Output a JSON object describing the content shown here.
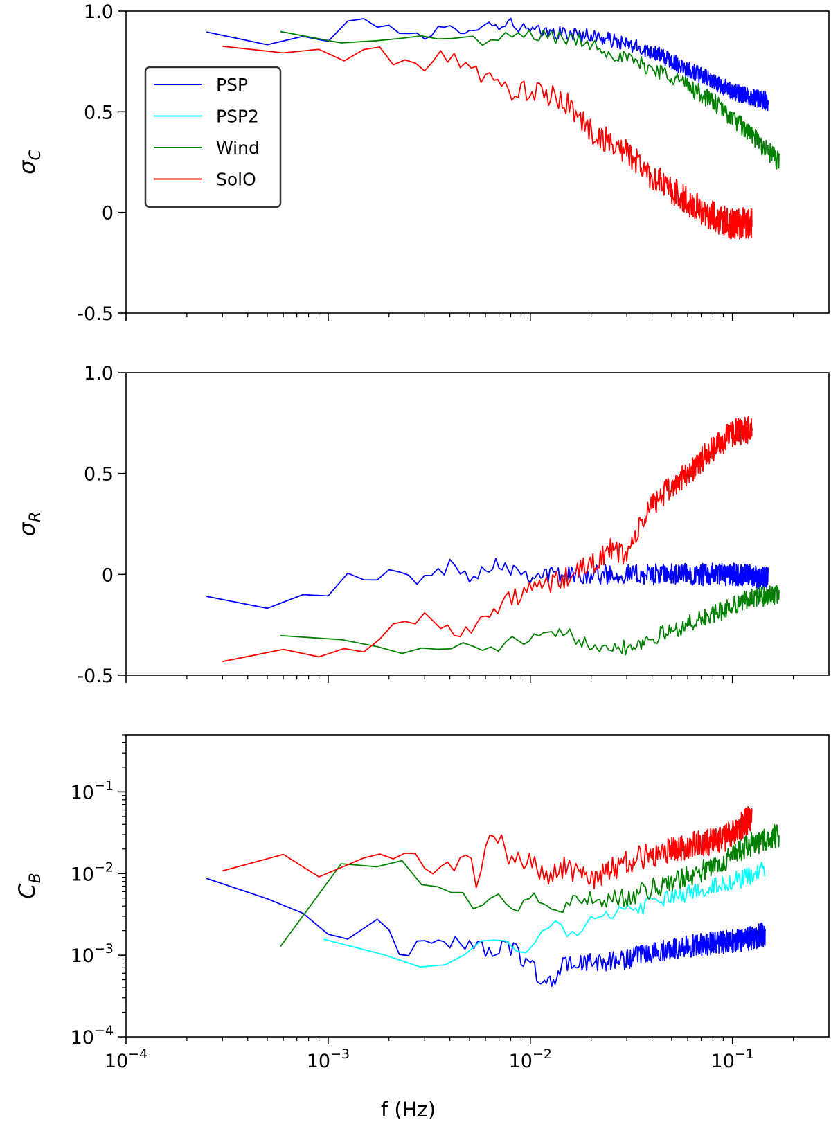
{
  "chart_data": [
    {
      "type": "line",
      "panel": "top",
      "ylabel": "σ_C",
      "xscale": "log",
      "xlim": [
        0.0001,
        0.3
      ],
      "ylim": [
        -0.5,
        1.0
      ],
      "yticks": [
        -0.5,
        0,
        0.5,
        1.0
      ],
      "ytick_labels": [
        "-0.5",
        "0",
        "0.5",
        "1.0"
      ],
      "legend": {
        "position": "upper-left",
        "entries": [
          "PSP",
          "PSP2",
          "Wind",
          "SolO"
        ]
      },
      "series": [
        {
          "name": "PSP",
          "color": "#0000ff",
          "freq_range": [
            0.00025,
            0.15
          ],
          "noise": 0.045,
          "anchors": [
            [
              0.00025,
              0.89
            ],
            [
              0.0005,
              0.84
            ],
            [
              0.001,
              0.87
            ],
            [
              0.00125,
              0.95
            ],
            [
              0.002,
              0.92
            ],
            [
              0.0028,
              0.9
            ],
            [
              0.003,
              0.84
            ],
            [
              0.0035,
              0.9
            ],
            [
              0.005,
              0.92
            ],
            [
              0.008,
              0.94
            ],
            [
              0.01,
              0.9
            ],
            [
              0.02,
              0.88
            ],
            [
              0.04,
              0.8
            ],
            [
              0.07,
              0.68
            ],
            [
              0.1,
              0.6
            ],
            [
              0.15,
              0.55
            ]
          ]
        },
        {
          "name": "PSP2",
          "color": "#00ffff",
          "legend_only": true
        },
        {
          "name": "Wind",
          "color": "#008000",
          "freq_range": [
            0.00058,
            0.17
          ],
          "noise": 0.05,
          "anchors": [
            [
              0.00058,
              0.89
            ],
            [
              0.001,
              0.87
            ],
            [
              0.0018,
              0.85
            ],
            [
              0.0025,
              0.85
            ],
            [
              0.004,
              0.88
            ],
            [
              0.0055,
              0.86
            ],
            [
              0.006,
              0.82
            ],
            [
              0.008,
              0.88
            ],
            [
              0.012,
              0.88
            ],
            [
              0.02,
              0.84
            ],
            [
              0.03,
              0.76
            ],
            [
              0.05,
              0.68
            ],
            [
              0.08,
              0.55
            ],
            [
              0.12,
              0.4
            ],
            [
              0.17,
              0.25
            ]
          ]
        },
        {
          "name": "SolO",
          "color": "#ff0000",
          "freq_range": [
            0.0003,
            0.125
          ],
          "noise": 0.08,
          "anchors": [
            [
              0.0003,
              0.81
            ],
            [
              0.0006,
              0.8
            ],
            [
              0.0009,
              0.78
            ],
            [
              0.0012,
              0.78
            ],
            [
              0.0015,
              0.81
            ],
            [
              0.002,
              0.76
            ],
            [
              0.0025,
              0.77
            ],
            [
              0.003,
              0.7
            ],
            [
              0.004,
              0.8
            ],
            [
              0.005,
              0.72
            ],
            [
              0.007,
              0.62
            ],
            [
              0.01,
              0.6
            ],
            [
              0.015,
              0.55
            ],
            [
              0.02,
              0.4
            ],
            [
              0.03,
              0.3
            ],
            [
              0.04,
              0.18
            ],
            [
              0.06,
              0.05
            ],
            [
              0.08,
              -0.02
            ],
            [
              0.1,
              -0.06
            ],
            [
              0.125,
              -0.05
            ]
          ]
        }
      ]
    },
    {
      "type": "line",
      "panel": "middle",
      "ylabel": "σ_R",
      "xscale": "log",
      "xlim": [
        0.0001,
        0.3
      ],
      "ylim": [
        -0.5,
        1.0
      ],
      "yticks": [
        -0.5,
        0,
        0.5,
        1.0
      ],
      "ytick_labels": [
        "-0.5",
        "0",
        "0.5",
        "1.0"
      ],
      "series": [
        {
          "name": "PSP",
          "color": "#0000ff",
          "freq_range": [
            0.00025,
            0.15
          ],
          "noise": 0.06,
          "anchors": [
            [
              0.00025,
              -0.08
            ],
            [
              0.0005,
              -0.14
            ],
            [
              0.001,
              -0.08
            ],
            [
              0.0012,
              -0.02
            ],
            [
              0.0015,
              -0.04
            ],
            [
              0.002,
              0.0
            ],
            [
              0.003,
              -0.02
            ],
            [
              0.004,
              0.04
            ],
            [
              0.005,
              0.0
            ],
            [
              0.007,
              0.06
            ],
            [
              0.01,
              0.0
            ],
            [
              0.02,
              0.0
            ],
            [
              0.05,
              0.0
            ],
            [
              0.1,
              0.0
            ],
            [
              0.15,
              -0.02
            ]
          ]
        },
        {
          "name": "Wind",
          "color": "#008000",
          "freq_range": [
            0.00058,
            0.17
          ],
          "noise": 0.05,
          "anchors": [
            [
              0.00058,
              -0.28
            ],
            [
              0.0012,
              -0.32
            ],
            [
              0.002,
              -0.4
            ],
            [
              0.003,
              -0.37
            ],
            [
              0.005,
              -0.35
            ],
            [
              0.006,
              -0.4
            ],
            [
              0.007,
              -0.35
            ],
            [
              0.01,
              -0.32
            ],
            [
              0.015,
              -0.3
            ],
            [
              0.02,
              -0.34
            ],
            [
              0.03,
              -0.36
            ],
            [
              0.05,
              -0.28
            ],
            [
              0.08,
              -0.2
            ],
            [
              0.12,
              -0.12
            ],
            [
              0.17,
              -0.1
            ]
          ]
        },
        {
          "name": "SolO",
          "color": "#ff0000",
          "freq_range": [
            0.0003,
            0.125
          ],
          "noise": 0.07,
          "anchors": [
            [
              0.0003,
              -0.4
            ],
            [
              0.0006,
              -0.39
            ],
            [
              0.0013,
              -0.39
            ],
            [
              0.0016,
              -0.36
            ],
            [
              0.002,
              -0.22
            ],
            [
              0.0025,
              -0.25
            ],
            [
              0.003,
              -0.22
            ],
            [
              0.004,
              -0.28
            ],
            [
              0.005,
              -0.25
            ],
            [
              0.006,
              -0.22
            ],
            [
              0.008,
              -0.12
            ],
            [
              0.01,
              -0.08
            ],
            [
              0.015,
              -0.02
            ],
            [
              0.02,
              0.05
            ],
            [
              0.025,
              0.12
            ],
            [
              0.03,
              0.1
            ],
            [
              0.04,
              0.35
            ],
            [
              0.06,
              0.5
            ],
            [
              0.08,
              0.62
            ],
            [
              0.1,
              0.7
            ],
            [
              0.125,
              0.72
            ]
          ]
        }
      ]
    },
    {
      "type": "line",
      "panel": "bottom",
      "ylabel": "C_B",
      "xlabel": "f (Hz)",
      "xscale": "log",
      "yscale": "log",
      "xlim": [
        0.0001,
        0.3
      ],
      "ylim": [
        0.0001,
        0.5
      ],
      "yticks": [
        0.0001,
        0.001,
        0.01,
        0.1
      ],
      "ytick_labels": [
        {
          "base": "10",
          "exp": "−4"
        },
        {
          "base": "10",
          "exp": "−3"
        },
        {
          "base": "10",
          "exp": "−2"
        },
        {
          "base": "10",
          "exp": "−1"
        }
      ],
      "xticks": [
        0.0001,
        0.001,
        0.01,
        0.1
      ],
      "xtick_labels": [
        {
          "base": "10",
          "exp": "−4"
        },
        {
          "base": "10",
          "exp": "−3"
        },
        {
          "base": "10",
          "exp": "−2"
        },
        {
          "base": "10",
          "exp": "−1"
        }
      ],
      "series": [
        {
          "name": "PSP",
          "color": "#0000ff",
          "freq_range": [
            0.00025,
            0.145
          ],
          "noise": 0.15,
          "anchors": [
            [
              0.00025,
              0.009
            ],
            [
              0.0005,
              0.0045
            ],
            [
              0.0007,
              0.004
            ],
            [
              0.0012,
              0.0015
            ],
            [
              0.0018,
              0.003
            ],
            [
              0.0022,
              0.001
            ],
            [
              0.003,
              0.0015
            ],
            [
              0.004,
              0.0015
            ],
            [
              0.006,
              0.0012
            ],
            [
              0.008,
              0.0012
            ],
            [
              0.01,
              0.0008
            ],
            [
              0.012,
              0.0004
            ],
            [
              0.015,
              0.0008
            ],
            [
              0.02,
              0.0008
            ],
            [
              0.03,
              0.0009
            ],
            [
              0.05,
              0.0012
            ],
            [
              0.08,
              0.0014
            ],
            [
              0.12,
              0.0016
            ],
            [
              0.145,
              0.0018
            ]
          ]
        },
        {
          "name": "PSP2",
          "color": "#00ffff",
          "freq_range": [
            0.00095,
            0.145
          ],
          "noise": 0.12,
          "anchors": [
            [
              0.00095,
              0.0016
            ],
            [
              0.002,
              0.0011
            ],
            [
              0.003,
              0.00065
            ],
            [
              0.004,
              0.0008
            ],
            [
              0.006,
              0.0019
            ],
            [
              0.008,
              0.0012
            ],
            [
              0.01,
              0.0012
            ],
            [
              0.013,
              0.0025
            ],
            [
              0.015,
              0.0018
            ],
            [
              0.02,
              0.0025
            ],
            [
              0.03,
              0.0035
            ],
            [
              0.05,
              0.005
            ],
            [
              0.08,
              0.007
            ],
            [
              0.12,
              0.009
            ],
            [
              0.145,
              0.011
            ]
          ]
        },
        {
          "name": "Wind",
          "color": "#008000",
          "freq_range": [
            0.00058,
            0.17
          ],
          "noise": 0.15,
          "anchors": [
            [
              0.00058,
              0.0013
            ],
            [
              0.0012,
              0.015
            ],
            [
              0.0018,
              0.01
            ],
            [
              0.0022,
              0.015
            ],
            [
              0.003,
              0.006
            ],
            [
              0.004,
              0.0065
            ],
            [
              0.0055,
              0.004
            ],
            [
              0.007,
              0.0065
            ],
            [
              0.008,
              0.0028
            ],
            [
              0.01,
              0.006
            ],
            [
              0.013,
              0.0035
            ],
            [
              0.02,
              0.005
            ],
            [
              0.03,
              0.005
            ],
            [
              0.05,
              0.008
            ],
            [
              0.08,
              0.012
            ],
            [
              0.12,
              0.022
            ],
            [
              0.17,
              0.03
            ]
          ]
        },
        {
          "name": "SolO",
          "color": "#ff0000",
          "freq_range": [
            0.0003,
            0.125
          ],
          "noise": 0.18,
          "anchors": [
            [
              0.0003,
              0.011
            ],
            [
              0.0006,
              0.015
            ],
            [
              0.0009,
              0.01
            ],
            [
              0.0012,
              0.014
            ],
            [
              0.0018,
              0.018
            ],
            [
              0.0025,
              0.016
            ],
            [
              0.003,
              0.012
            ],
            [
              0.004,
              0.012
            ],
            [
              0.005,
              0.015
            ],
            [
              0.0055,
              0.007
            ],
            [
              0.0062,
              0.04
            ],
            [
              0.008,
              0.015
            ],
            [
              0.01,
              0.014
            ],
            [
              0.012,
              0.009
            ],
            [
              0.015,
              0.012
            ],
            [
              0.02,
              0.008
            ],
            [
              0.03,
              0.014
            ],
            [
              0.05,
              0.02
            ],
            [
              0.08,
              0.025
            ],
            [
              0.1,
              0.03
            ],
            [
              0.125,
              0.05
            ]
          ]
        }
      ]
    }
  ]
}
